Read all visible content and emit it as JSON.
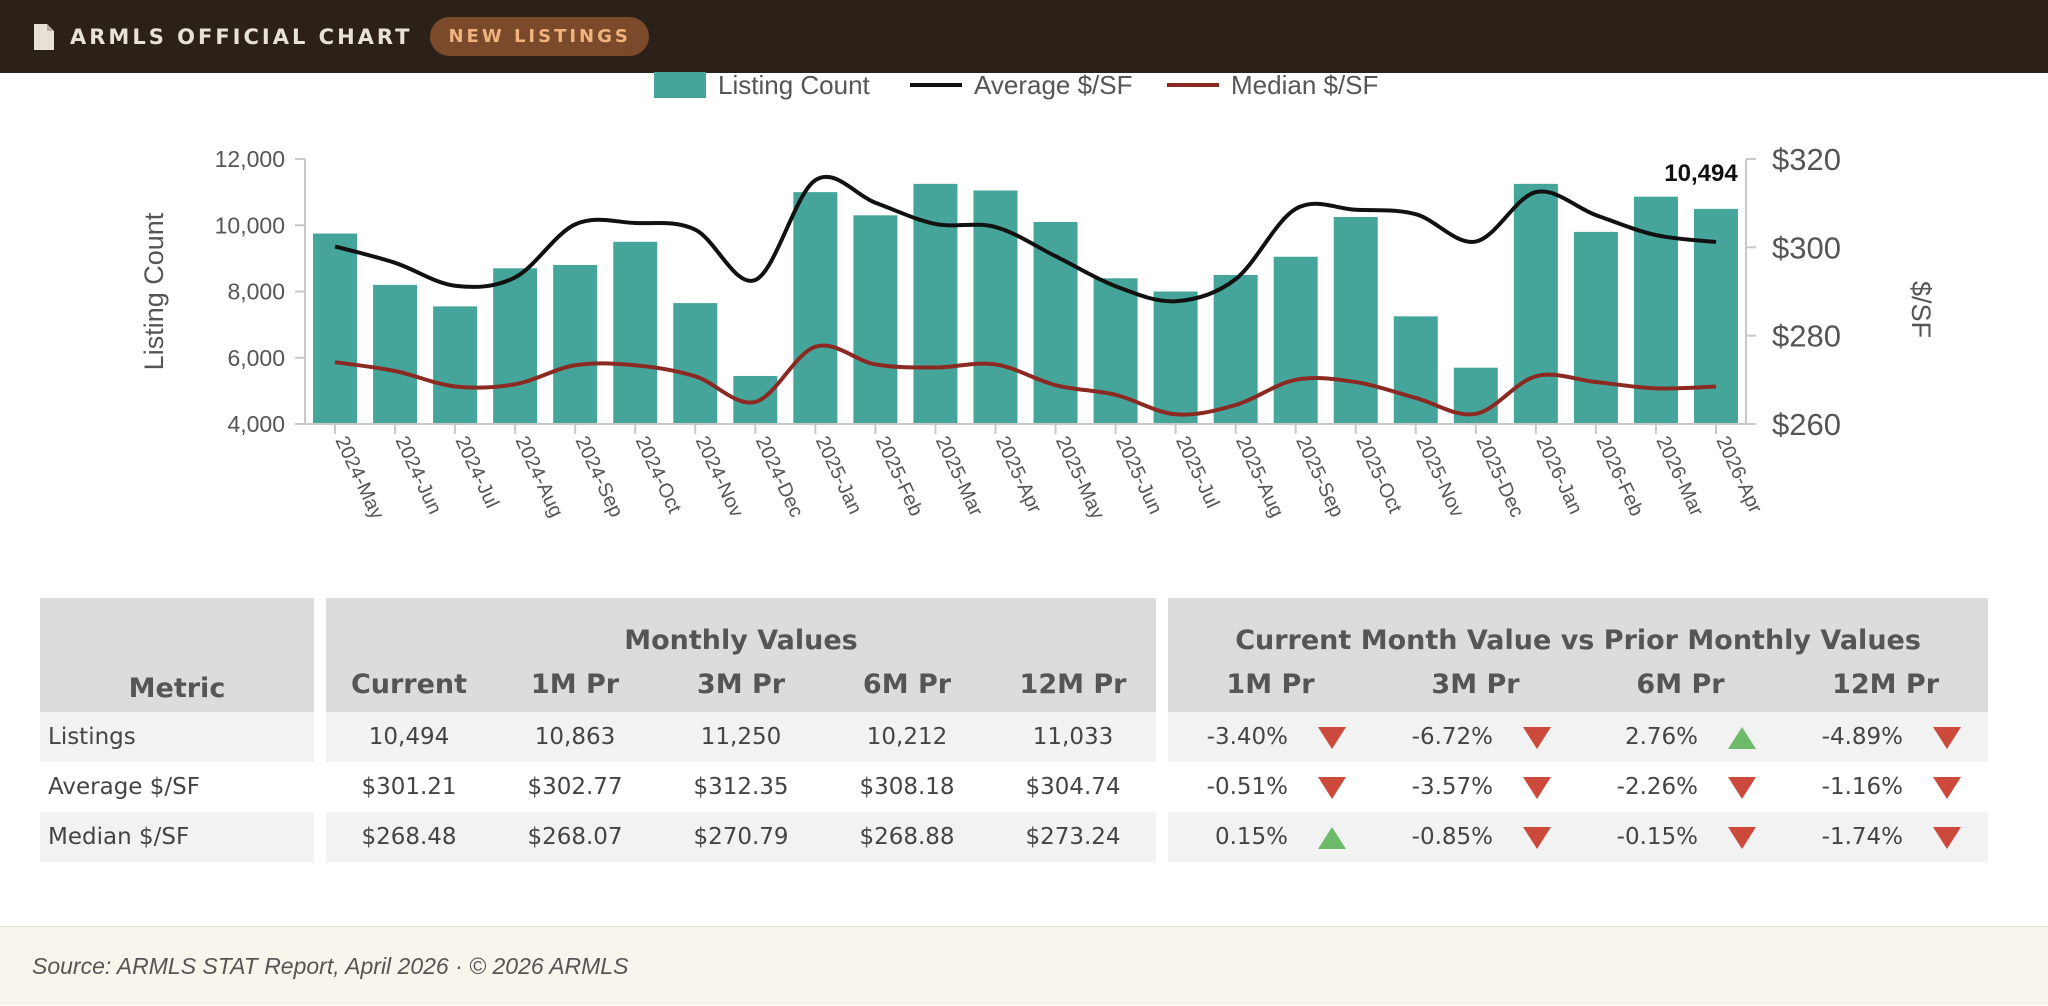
{
  "header": {
    "title": "ARMLS OFFICIAL CHART",
    "badge": "NEW LISTINGS"
  },
  "colors": {
    "bar": "#45a59a",
    "average": "#111111",
    "median": "#8b2a22",
    "down": "#cc4a3c",
    "up": "#6dbb6a"
  },
  "chart_data": {
    "type": "bar",
    "legend": [
      "Listing Count",
      "Average $/SF",
      "Median $/SF"
    ],
    "legend_position": "top-center",
    "categories": [
      "2024-May",
      "2024-Jun",
      "2024-Jul",
      "2024-Aug",
      "2024-Sep",
      "2024-Oct",
      "2024-Nov",
      "2024-Dec",
      "2025-Jan",
      "2025-Feb",
      "2025-Mar",
      "2025-Apr",
      "2025-May",
      "2025-Jun",
      "2025-Jul",
      "2025-Aug",
      "2025-Sep",
      "2025-Oct",
      "2025-Nov",
      "2025-Dec",
      "2026-Jan",
      "2026-Feb",
      "2026-Mar",
      "2026-Apr"
    ],
    "series": [
      {
        "name": "Listing Count",
        "axis": "left",
        "type": "bar",
        "values": [
          9750,
          8200,
          7550,
          8700,
          8800,
          9500,
          7650,
          5450,
          11000,
          10300,
          11250,
          11050,
          10100,
          8400,
          8000,
          8500,
          9050,
          10250,
          7250,
          5700,
          11250,
          9800,
          10863,
          10494
        ]
      },
      {
        "name": "Average $/SF",
        "axis": "right",
        "type": "line",
        "values": [
          300.2,
          296.5,
          291.3,
          293.2,
          305.2,
          305.5,
          304.0,
          292.6,
          315.2,
          310.1,
          305.3,
          304.6,
          298.0,
          291.2,
          287.8,
          292.8,
          308.7,
          308.5,
          307.5,
          301.3,
          312.5,
          307.3,
          302.77,
          301.21
        ]
      },
      {
        "name": "Median $/SF",
        "axis": "right",
        "type": "line",
        "values": [
          274.0,
          272.0,
          268.5,
          269.0,
          273.3,
          273.3,
          270.8,
          265.0,
          277.5,
          273.5,
          272.8,
          273.5,
          268.8,
          266.6,
          262.2,
          264.3,
          270.0,
          269.5,
          265.9,
          262.3,
          270.8,
          269.5,
          268.07,
          268.48
        ]
      }
    ],
    "ylabel": "Listing Count",
    "y2label": "$/SF",
    "ylim": [
      4000,
      12000
    ],
    "yticks": [
      "4,000",
      "6,000",
      "8,000",
      "10,000",
      "12,000"
    ],
    "y2lim": [
      260,
      320
    ],
    "y2ticks": [
      "$260",
      "$280",
      "$300",
      "$320"
    ],
    "annotation": "10,494",
    "grid": false
  },
  "table": {
    "group1": "Monthly Values",
    "group2": "Current Month Value vs Prior Monthly Values",
    "metric_header": "Metric",
    "monthly_headers": [
      "Current",
      "1M Pr",
      "3M Pr",
      "6M Pr",
      "12M Pr"
    ],
    "compare_headers": [
      "1M Pr",
      "3M Pr",
      "6M Pr",
      "12M Pr"
    ],
    "rows": [
      {
        "metric": "Listings",
        "values": [
          "10,494",
          "10,863",
          "11,250",
          "10,212",
          "11,033"
        ],
        "changes": [
          "-3.40%",
          "-6.72%",
          "2.76%",
          "-4.89%"
        ],
        "dirs": [
          "down",
          "down",
          "up",
          "down"
        ]
      },
      {
        "metric": "Average $/SF",
        "values": [
          "$301.21",
          "$302.77",
          "$312.35",
          "$308.18",
          "$304.74"
        ],
        "changes": [
          "-0.51%",
          "-3.57%",
          "-2.26%",
          "-1.16%"
        ],
        "dirs": [
          "down",
          "down",
          "down",
          "down"
        ]
      },
      {
        "metric": "Median $/SF",
        "values": [
          "$268.48",
          "$268.07",
          "$270.79",
          "$268.88",
          "$273.24"
        ],
        "changes": [
          "0.15%",
          "-0.85%",
          "-0.15%",
          "-1.74%"
        ],
        "dirs": [
          "up",
          "down",
          "down",
          "down"
        ]
      }
    ]
  },
  "footer": {
    "source": "Source: ARMLS STAT Report, April 2026 · © 2026 ARMLS"
  }
}
